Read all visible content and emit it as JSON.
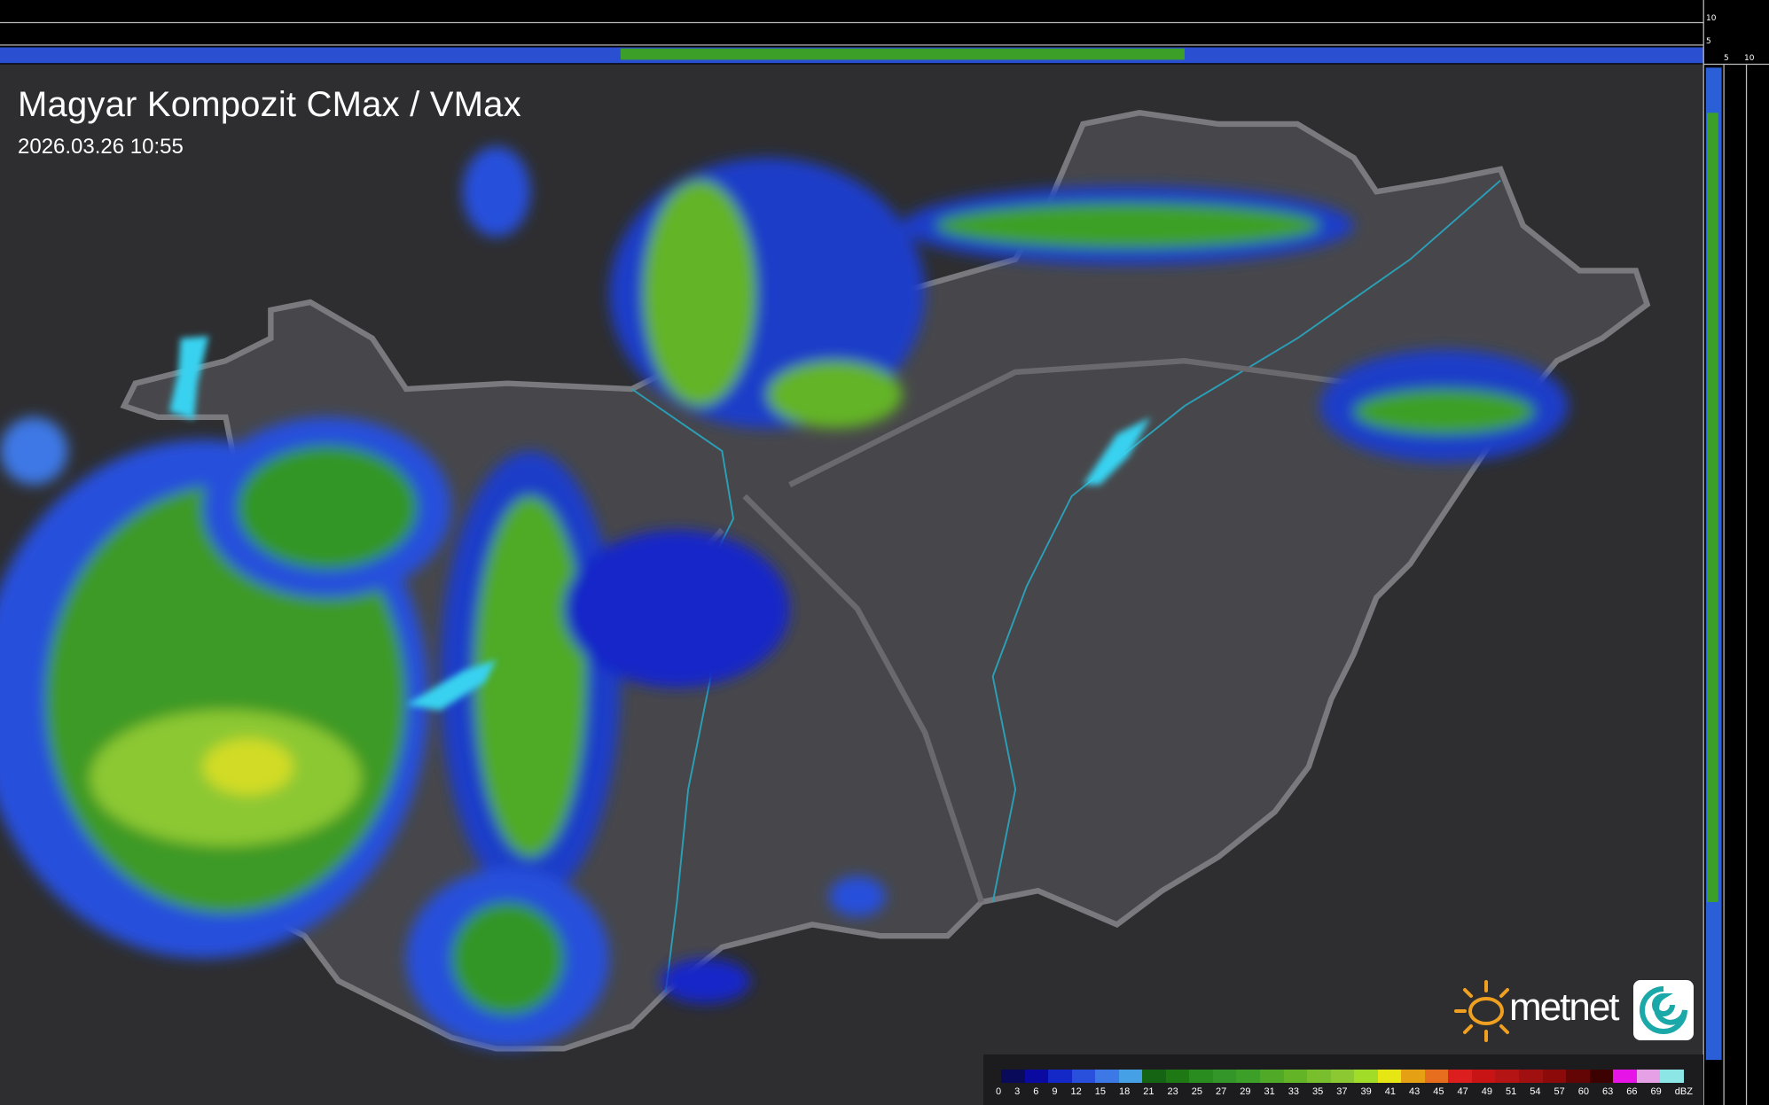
{
  "header": {
    "title": "Magyar Kompozit CMax / VMax",
    "timestamp": "2026.03.26 10:55"
  },
  "profile_axes": {
    "top_labels": [
      "10",
      "5"
    ],
    "right_labels": [
      "5",
      "10"
    ]
  },
  "legend": {
    "unit": "dBZ",
    "labels": [
      "0",
      "3",
      "6",
      "9",
      "12",
      "15",
      "18",
      "21",
      "23",
      "25",
      "27",
      "29",
      "31",
      "33",
      "35",
      "37",
      "39",
      "41",
      "43",
      "45",
      "47",
      "49",
      "51",
      "54",
      "57",
      "60",
      "63",
      "66",
      "69"
    ],
    "colors": [
      "#0a0a5a",
      "#0a0aa0",
      "#1428c8",
      "#2850dc",
      "#3c78e6",
      "#46a0e6",
      "#146414",
      "#1e7814",
      "#288c1e",
      "#329628",
      "#3ca028",
      "#50aa28",
      "#64b428",
      "#78be2d",
      "#8cc832",
      "#a0dc28",
      "#e6e614",
      "#e6a014",
      "#e66e1e",
      "#dc1e1e",
      "#c81414",
      "#b41414",
      "#a01010",
      "#8c0a0a",
      "#640505",
      "#3c0202",
      "#e614e6",
      "#e6a0e6",
      "#8ce6e6"
    ]
  },
  "logo": {
    "text": "metnet"
  },
  "colors": {
    "background": "#2e2e31",
    "country": "#47474b",
    "border": "#7a7a7e",
    "water": "#38c8e6"
  }
}
